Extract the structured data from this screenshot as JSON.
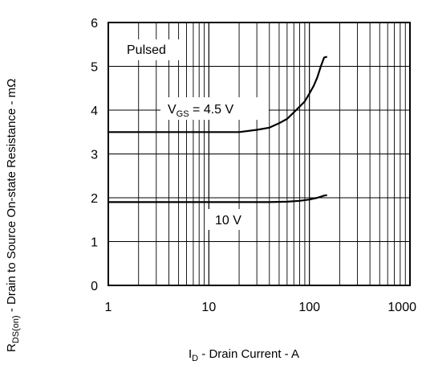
{
  "chart_data": {
    "type": "line",
    "x_scale": "log",
    "xlim": [
      1,
      1000
    ],
    "ylim": [
      0,
      6
    ],
    "grid": true,
    "x_ticks": [
      "1",
      "10",
      "100",
      "1000"
    ],
    "y_ticks": [
      "0",
      "1",
      "2",
      "3",
      "4",
      "5",
      "6"
    ],
    "xlabel": {
      "main": "I",
      "sub": "D",
      "rest": " - Drain Current - A"
    },
    "ylabel": {
      "main": "R",
      "sub": "DS(on)",
      "rest": " - Drain to Source On-state Resistance - mΩ"
    },
    "annotations": {
      "pulsed": "Pulsed",
      "vgs_main": "V",
      "vgs_sub": "GS",
      "vgs_rest": " = 4.5 V",
      "ten_v": "10 V"
    },
    "series": [
      {
        "x": [
          1,
          5,
          10,
          20,
          30,
          40,
          50,
          60,
          70,
          80,
          90,
          100,
          110,
          120,
          130,
          140,
          150
        ],
        "y": [
          3.5,
          3.5,
          3.5,
          3.5,
          3.55,
          3.6,
          3.7,
          3.8,
          3.95,
          4.08,
          4.2,
          4.38,
          4.55,
          4.75,
          5.0,
          5.2,
          5.22
        ]
      },
      {
        "x": [
          1,
          10,
          20,
          40,
          60,
          80,
          100,
          120,
          140,
          150
        ],
        "y": [
          1.9,
          1.9,
          1.9,
          1.9,
          1.91,
          1.93,
          1.96,
          2.0,
          2.05,
          2.06
        ]
      }
    ]
  }
}
